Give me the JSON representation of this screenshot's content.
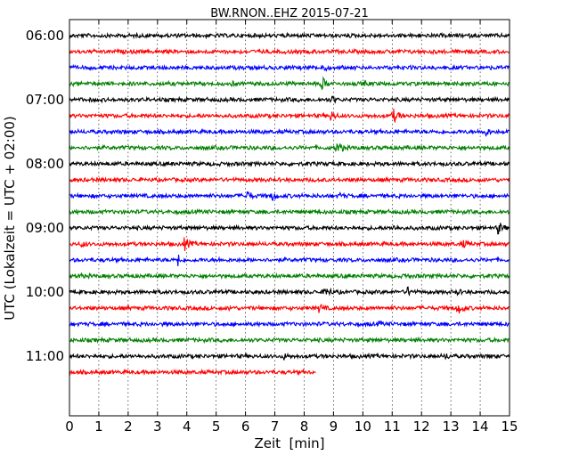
{
  "chart_data": {
    "type": "line",
    "title": "BW.RNON..EHZ 2015-07-21",
    "xlabel": "Zeit  [min]",
    "ylabel": "UTC (Lokalzeit = UTC + 02:00)",
    "xlim": [
      0,
      15
    ],
    "x_ticks": [
      0,
      1,
      2,
      3,
      4,
      5,
      6,
      7,
      8,
      9,
      10,
      11,
      12,
      13,
      14,
      15
    ],
    "x_tick_labels": [
      "0",
      "1",
      "2",
      "3",
      "4",
      "5",
      "6",
      "7",
      "8",
      "9",
      "10",
      "11",
      "12",
      "13",
      "14",
      "15"
    ],
    "y_tick_labels": [
      "06:00",
      "07:00",
      "08:00",
      "09:00",
      "10:00",
      "11:00"
    ],
    "grid": "vertical dotted",
    "line_interval_minutes": 15,
    "series_colors": [
      "#000000",
      "#ff0000",
      "#0000ff",
      "#008000"
    ],
    "traces": [
      {
        "start": "06:00",
        "color": "#000000",
        "end_min": 15,
        "events": []
      },
      {
        "start": "06:15",
        "color": "#ff0000",
        "end_min": 15,
        "events": []
      },
      {
        "start": "06:30",
        "color": "#0000ff",
        "end_min": 15,
        "events": [
          {
            "t": 8.6,
            "amp": 6
          }
        ]
      },
      {
        "start": "06:45",
        "color": "#008000",
        "end_min": 15,
        "events": [
          {
            "t": 8.6,
            "amp": 8
          },
          {
            "t": 10.0,
            "amp": 5
          },
          {
            "t": 5.5,
            "amp": 4
          }
        ]
      },
      {
        "start": "07:00",
        "color": "#000000",
        "end_min": 15,
        "events": [
          {
            "t": 8.9,
            "amp": 6
          }
        ]
      },
      {
        "start": "07:15",
        "color": "#ff0000",
        "end_min": 15,
        "events": [
          {
            "t": 11.0,
            "amp": 10
          },
          {
            "t": 8.9,
            "amp": 7
          }
        ]
      },
      {
        "start": "07:30",
        "color": "#0000ff",
        "end_min": 15,
        "events": [
          {
            "t": 14.1,
            "amp": 8
          }
        ]
      },
      {
        "start": "07:45",
        "color": "#008000",
        "end_min": 15,
        "events": [
          {
            "t": 9.1,
            "amp": 9
          }
        ]
      },
      {
        "start": "08:00",
        "color": "#000000",
        "end_min": 15,
        "events": []
      },
      {
        "start": "08:15",
        "color": "#ff0000",
        "end_min": 15,
        "events": [
          {
            "t": 8.5,
            "amp": 4
          },
          {
            "t": 9.8,
            "amp": 4
          }
        ]
      },
      {
        "start": "08:30",
        "color": "#0000ff",
        "end_min": 15,
        "events": [
          {
            "t": 6.0,
            "amp": 8
          },
          {
            "t": 6.9,
            "amp": 7
          },
          {
            "t": 9.2,
            "amp": 5
          }
        ]
      },
      {
        "start": "08:45",
        "color": "#008000",
        "end_min": 15,
        "events": []
      },
      {
        "start": "09:00",
        "color": "#000000",
        "end_min": 15,
        "events": [
          {
            "t": 14.6,
            "amp": 8
          },
          {
            "t": 11.0,
            "amp": 5
          }
        ]
      },
      {
        "start": "09:15",
        "color": "#ff0000",
        "end_min": 15,
        "events": [
          {
            "t": 0.4,
            "amp": 5
          },
          {
            "t": 3.9,
            "amp": 9
          },
          {
            "t": 13.4,
            "amp": 6
          }
        ]
      },
      {
        "start": "09:30",
        "color": "#0000ff",
        "end_min": 15,
        "events": [
          {
            "t": 3.7,
            "amp": 15
          },
          {
            "t": 5.0,
            "amp": 4
          }
        ]
      },
      {
        "start": "09:45",
        "color": "#008000",
        "end_min": 15,
        "events": [
          {
            "t": 0.3,
            "amp": 5
          },
          {
            "t": 11.4,
            "amp": 5
          }
        ]
      },
      {
        "start": "10:00",
        "color": "#000000",
        "end_min": 15,
        "events": [
          {
            "t": 8.7,
            "amp": 8
          },
          {
            "t": 11.5,
            "amp": 7
          },
          {
            "t": 13.2,
            "amp": 5
          }
        ]
      },
      {
        "start": "10:15",
        "color": "#ff0000",
        "end_min": 15,
        "events": [
          {
            "t": 13.2,
            "amp": 9
          },
          {
            "t": 8.5,
            "amp": 6
          },
          {
            "t": 5.4,
            "amp": 4
          }
        ]
      },
      {
        "start": "10:30",
        "color": "#0000ff",
        "end_min": 15,
        "events": [
          {
            "t": 10.5,
            "amp": 5
          }
        ]
      },
      {
        "start": "10:45",
        "color": "#008000",
        "end_min": 15,
        "events": []
      },
      {
        "start": "11:00",
        "color": "#000000",
        "end_min": 15,
        "events": [
          {
            "t": 7.3,
            "amp": 5
          },
          {
            "t": 12.8,
            "amp": 5
          },
          {
            "t": 14.3,
            "amp": 4
          }
        ]
      },
      {
        "start": "11:15",
        "color": "#ff0000",
        "end_min": 8.4,
        "events": []
      }
    ]
  }
}
